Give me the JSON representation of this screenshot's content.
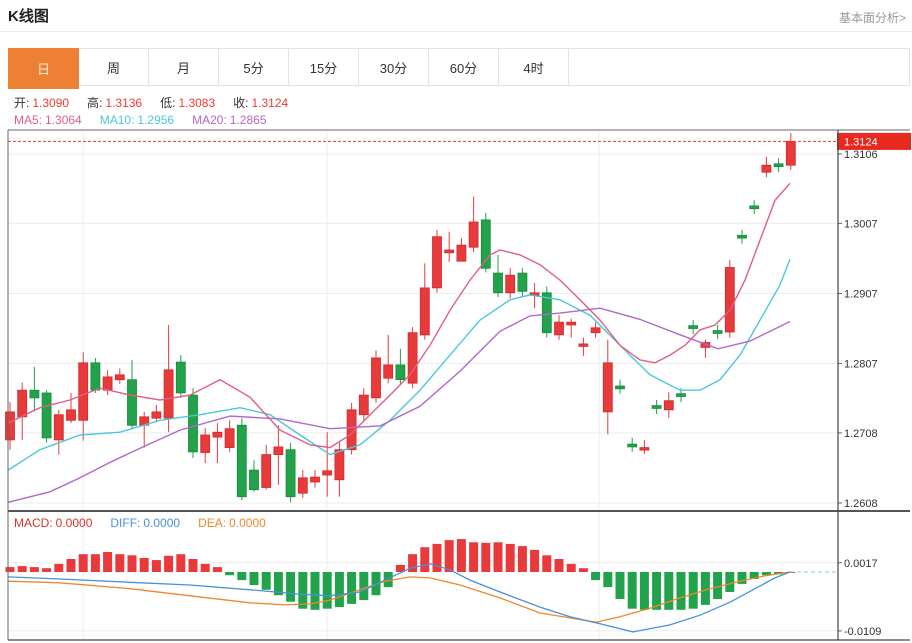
{
  "page": {
    "title": "K线图",
    "link": "基本面分析>"
  },
  "tabs": {
    "selected": "日",
    "items": [
      {
        "key": "day",
        "label": "日",
        "selected": true
      },
      {
        "key": "week",
        "label": "周",
        "selected": false
      },
      {
        "key": "month",
        "label": "月",
        "selected": false
      },
      {
        "key": "5min",
        "label": "5分",
        "selected": false
      },
      {
        "key": "15min",
        "label": "15分",
        "selected": false
      },
      {
        "key": "30min",
        "label": "30分",
        "selected": false
      },
      {
        "key": "60min",
        "label": "60分",
        "selected": false
      },
      {
        "key": "4hour",
        "label": "4时",
        "selected": false
      }
    ]
  },
  "legend": {
    "open_label": "开:",
    "open": "1.3090",
    "high_label": "高:",
    "high": "1.3136",
    "low_label": "低:",
    "low": "1.3083",
    "close_label": "收:",
    "close": "1.3124",
    "ma5_label": "MA5:",
    "ma5": "1.3064",
    "ma10_label": "MA10:",
    "ma10": "1.2956",
    "ma20_label": "MA20:",
    "ma20": "1.2865"
  },
  "macd_legend": {
    "macd_label": "MACD:",
    "macd": "0.0000",
    "diff_label": "DIFF:",
    "diff": "0.0000",
    "dea_label": "DEA:",
    "dea": "0.0000"
  },
  "colors": {
    "accent": "#ed8033",
    "up": "#e8393b",
    "up_border": "#ce2b2d",
    "down": "#21a24b",
    "down_border": "#158c3b",
    "ma5": "#e25d87",
    "ma10": "#4cc7da",
    "ma20": "#b168c8",
    "diff": "#4a90d9",
    "dea": "#ef872d",
    "value_red": "#f03b30",
    "badge": "#e8291f",
    "grid": "#ececec",
    "frame": "#666666",
    "axis_text": "#333333",
    "zero_dash": "#86cede",
    "price_line": "#f23527",
    "link": "#999999"
  },
  "chart_data": [
    {
      "type": "candlestick",
      "title": "K线图",
      "period": "日",
      "last_price": 1.3124,
      "last_price_label": "1.3124",
      "y_ticks": [
        1.3106,
        1.3007,
        1.2907,
        1.2807,
        1.2708,
        1.2608
      ],
      "y_tick_labels": [
        "1.3106",
        "1.3007",
        "1.2907",
        "1.2807",
        "1.2708",
        "1.2608"
      ],
      "legend_entries": [
        "MA5",
        "MA10",
        "MA20"
      ],
      "grid": true,
      "axis_side": "right",
      "candles_ohlc": [
        [
          1.2698,
          1.2752,
          1.2684,
          1.2738
        ],
        [
          1.2731,
          1.278,
          1.2698,
          1.2769
        ],
        [
          1.2769,
          1.2802,
          1.2741,
          1.2758
        ],
        [
          1.2765,
          1.2769,
          1.2694,
          1.2701
        ],
        [
          1.2698,
          1.2741,
          1.2677,
          1.2734
        ],
        [
          1.2726,
          1.2765,
          1.2722,
          1.2741
        ],
        [
          1.2726,
          1.2823,
          1.2697,
          1.2808
        ],
        [
          1.2808,
          1.2815,
          1.2765,
          1.2769
        ],
        [
          1.2769,
          1.2798,
          1.2762,
          1.2788
        ],
        [
          1.2784,
          1.28,
          1.2778,
          1.2791
        ],
        [
          1.2784,
          1.2812,
          1.2715,
          1.2719
        ],
        [
          1.2719,
          1.2738,
          1.2687,
          1.2731
        ],
        [
          1.2729,
          1.2748,
          1.2723,
          1.2738
        ],
        [
          1.2729,
          1.2862,
          1.2709,
          1.2798
        ],
        [
          1.2809,
          1.2819,
          1.2758,
          1.2765
        ],
        [
          1.2762,
          1.2772,
          1.2672,
          1.2681
        ],
        [
          1.268,
          1.2715,
          1.2665,
          1.2705
        ],
        [
          1.2702,
          1.2722,
          1.2665,
          1.2709
        ],
        [
          1.2687,
          1.2726,
          1.2681,
          1.2714
        ],
        [
          1.2719,
          1.2729,
          1.2612,
          1.2617
        ],
        [
          1.2655,
          1.2669,
          1.2624,
          1.2627
        ],
        [
          1.263,
          1.2691,
          1.2627,
          1.2677
        ],
        [
          1.2677,
          1.2719,
          1.2634,
          1.2688
        ],
        [
          1.2684,
          1.2694,
          1.2609,
          1.2617
        ],
        [
          1.2622,
          1.2655,
          1.2615,
          1.2644
        ],
        [
          1.2638,
          1.2655,
          1.263,
          1.2645
        ],
        [
          1.2648,
          1.2709,
          1.2617,
          1.2654
        ],
        [
          1.2641,
          1.2694,
          1.2617,
          1.2684
        ],
        [
          1.2684,
          1.2751,
          1.2677,
          1.2741
        ],
        [
          1.2734,
          1.2772,
          1.2726,
          1.2762
        ],
        [
          1.2758,
          1.2826,
          1.2751,
          1.2815
        ],
        [
          1.2786,
          1.2848,
          1.2779,
          1.2805
        ],
        [
          1.2805,
          1.2828,
          1.2776,
          1.2784
        ],
        [
          1.2779,
          1.2859,
          1.2772,
          1.2851
        ],
        [
          1.2848,
          1.295,
          1.2841,
          1.2915
        ],
        [
          1.2915,
          1.2998,
          1.2908,
          1.2988
        ],
        [
          1.2965,
          1.2995,
          1.2952,
          1.2969
        ],
        [
          1.2953,
          1.2986,
          1.2957,
          1.2976
        ],
        [
          1.2973,
          1.3045,
          1.2966,
          1.3009
        ],
        [
          1.3012,
          1.3022,
          1.2937,
          1.2943
        ],
        [
          1.2936,
          1.2962,
          1.2902,
          1.2908
        ],
        [
          1.2908,
          1.2943,
          1.29,
          1.2933
        ],
        [
          1.2936,
          1.2943,
          1.2902,
          1.291
        ],
        [
          1.2905,
          1.2922,
          1.2886,
          1.2908
        ],
        [
          1.2908,
          1.2917,
          1.2844,
          1.2851
        ],
        [
          1.2848,
          1.2876,
          1.2841,
          1.2866
        ],
        [
          1.2862,
          1.2871,
          1.2844,
          1.2866
        ],
        [
          1.2832,
          1.2844,
          1.2818,
          1.2835
        ],
        [
          1.2851,
          1.2866,
          1.2844,
          1.2858
        ],
        [
          1.2738,
          1.2841,
          1.2706,
          1.2808
        ],
        [
          1.2775,
          1.2784,
          1.2764,
          1.2771
        ],
        [
          1.2692,
          1.2701,
          1.2681,
          1.2688
        ],
        [
          1.2684,
          1.2698,
          1.2678,
          1.2687
        ],
        [
          1.2747,
          1.2755,
          1.2735,
          1.2743
        ],
        [
          1.2741,
          1.2766,
          1.2729,
          1.2754
        ],
        [
          1.2764,
          1.2772,
          1.2752,
          1.276
        ],
        [
          1.2861,
          1.2869,
          1.2849,
          1.2857
        ],
        [
          1.283,
          1.2841,
          1.2815,
          1.2837
        ],
        [
          1.2854,
          1.2862,
          1.2842,
          1.285
        ],
        [
          1.2852,
          1.2955,
          1.2844,
          1.2944
        ],
        [
          1.299,
          1.2998,
          1.2978,
          1.2986
        ],
        [
          1.3032,
          1.304,
          1.302,
          1.3028
        ],
        [
          1.308,
          1.3102,
          1.3073,
          1.309
        ],
        [
          1.3092,
          1.31,
          1.308,
          1.3088
        ],
        [
          1.309,
          1.3136,
          1.3083,
          1.3124
        ]
      ],
      "ma5_line": [
        [
          8,
          1.2722
        ],
        [
          40,
          1.2744
        ],
        [
          70,
          1.2755
        ],
        [
          100,
          1.2772
        ],
        [
          130,
          1.2762
        ],
        [
          160,
          1.2755
        ],
        [
          190,
          1.2762
        ],
        [
          220,
          1.2784
        ],
        [
          250,
          1.2759
        ],
        [
          280,
          1.2712
        ],
        [
          310,
          1.2691
        ],
        [
          330,
          1.2687
        ],
        [
          350,
          1.2705
        ],
        [
          370,
          1.2734
        ],
        [
          390,
          1.2762
        ],
        [
          410,
          1.2791
        ],
        [
          430,
          1.2833
        ],
        [
          450,
          1.2883
        ],
        [
          470,
          1.2926
        ],
        [
          490,
          1.2962
        ],
        [
          500,
          1.2969
        ],
        [
          520,
          1.2962
        ],
        [
          540,
          1.2948
        ],
        [
          560,
          1.2926
        ],
        [
          580,
          1.2898
        ],
        [
          600,
          1.2869
        ],
        [
          620,
          1.2833
        ],
        [
          640,
          1.2812
        ],
        [
          655,
          1.2808
        ],
        [
          670,
          1.2819
        ],
        [
          685,
          1.2833
        ],
        [
          700,
          1.2855
        ],
        [
          715,
          1.2862
        ],
        [
          730,
          1.2883
        ],
        [
          745,
          1.2926
        ],
        [
          760,
          1.2983
        ],
        [
          775,
          1.304
        ],
        [
          790,
          1.3064
        ]
      ],
      "ma10_line": [
        [
          8,
          1.2655
        ],
        [
          40,
          1.2684
        ],
        [
          80,
          1.2705
        ],
        [
          120,
          1.2709
        ],
        [
          160,
          1.2726
        ],
        [
          200,
          1.2734
        ],
        [
          240,
          1.2744
        ],
        [
          270,
          1.2734
        ],
        [
          300,
          1.2705
        ],
        [
          330,
          1.2677
        ],
        [
          360,
          1.2691
        ],
        [
          390,
          1.2726
        ],
        [
          420,
          1.2769
        ],
        [
          450,
          1.2819
        ],
        [
          480,
          1.2869
        ],
        [
          510,
          1.2898
        ],
        [
          530,
          1.2905
        ],
        [
          560,
          1.2898
        ],
        [
          590,
          1.2876
        ],
        [
          620,
          1.2833
        ],
        [
          650,
          1.2791
        ],
        [
          680,
          1.2769
        ],
        [
          700,
          1.2769
        ],
        [
          720,
          1.2784
        ],
        [
          740,
          1.2819
        ],
        [
          760,
          1.2869
        ],
        [
          780,
          1.2919
        ],
        [
          790,
          1.2956
        ]
      ],
      "ma20_line": [
        [
          8,
          1.2609
        ],
        [
          50,
          1.2624
        ],
        [
          80,
          1.2644
        ],
        [
          110,
          1.2666
        ],
        [
          140,
          1.2686
        ],
        [
          180,
          1.2712
        ],
        [
          230,
          1.2732
        ],
        [
          280,
          1.2728
        ],
        [
          330,
          1.2714
        ],
        [
          380,
          1.2718
        ],
        [
          420,
          1.2746
        ],
        [
          460,
          1.2796
        ],
        [
          500,
          1.2853
        ],
        [
          530,
          1.2875
        ],
        [
          560,
          1.2879
        ],
        [
          600,
          1.2886
        ],
        [
          640,
          1.287
        ],
        [
          680,
          1.2848
        ],
        [
          718,
          1.2828
        ],
        [
          750,
          1.2839
        ],
        [
          790,
          1.2867
        ]
      ]
    },
    {
      "type": "macd",
      "y_ticks": [
        0.0017,
        -0.0109
      ],
      "y_tick_labels": [
        "0.0017",
        "-0.0109"
      ],
      "histogram": [
        0.0009,
        0.0011,
        0.0009,
        0.0007,
        0.0015,
        0.0024,
        0.0033,
        0.0033,
        0.0037,
        0.0033,
        0.0031,
        0.0026,
        0.0022,
        0.003,
        0.0033,
        0.0024,
        0.0015,
        0.0009,
        -0.0006,
        -0.0015,
        -0.0024,
        -0.0033,
        -0.0043,
        -0.0055,
        -0.0068,
        -0.007,
        -0.0068,
        -0.0065,
        -0.0059,
        -0.0052,
        -0.0043,
        -0.0028,
        0.0013,
        0.0033,
        0.0046,
        0.0052,
        0.0059,
        0.0061,
        0.0055,
        0.0054,
        0.0055,
        0.0052,
        0.0048,
        0.0041,
        0.0031,
        0.0024,
        0.0015,
        0.0007,
        -0.0015,
        -0.0028,
        -0.005,
        -0.0068,
        -0.007,
        -0.007,
        -0.007,
        -0.007,
        -0.0068,
        -0.0061,
        -0.005,
        -0.0037,
        -0.0022,
        -0.0013,
        -0.0006,
        -0.0004,
        0.0
      ],
      "diff_line": [
        [
          8,
          -0.0009
        ],
        [
          60,
          -0.0013
        ],
        [
          130,
          -0.0019
        ],
        [
          190,
          -0.0024
        ],
        [
          250,
          -0.0033
        ],
        [
          300,
          -0.0041
        ],
        [
          330,
          -0.0044
        ],
        [
          360,
          -0.0037
        ],
        [
          385,
          -0.0015
        ],
        [
          410,
          0.0007
        ],
        [
          430,
          0.0015
        ],
        [
          450,
          0.0004
        ],
        [
          470,
          -0.0015
        ],
        [
          500,
          -0.0037
        ],
        [
          540,
          -0.0065
        ],
        [
          570,
          -0.0083
        ],
        [
          600,
          -0.0096
        ],
        [
          633,
          -0.0111
        ],
        [
          670,
          -0.0098
        ],
        [
          700,
          -0.008
        ],
        [
          730,
          -0.0056
        ],
        [
          755,
          -0.0031
        ],
        [
          775,
          -0.0011
        ],
        [
          790,
          0.0
        ]
      ],
      "dea_line": [
        [
          8,
          -0.0017
        ],
        [
          60,
          -0.002
        ],
        [
          130,
          -0.0031
        ],
        [
          190,
          -0.0044
        ],
        [
          250,
          -0.0057
        ],
        [
          285,
          -0.0061
        ],
        [
          310,
          -0.0059
        ],
        [
          330,
          -0.0052
        ],
        [
          360,
          -0.0033
        ],
        [
          385,
          -0.0017
        ],
        [
          410,
          -0.0009
        ],
        [
          430,
          -0.0011
        ],
        [
          460,
          -0.0024
        ],
        [
          500,
          -0.0048
        ],
        [
          540,
          -0.0076
        ],
        [
          570,
          -0.0085
        ],
        [
          596,
          -0.0093
        ],
        [
          620,
          -0.0083
        ],
        [
          650,
          -0.0067
        ],
        [
          680,
          -0.0048
        ],
        [
          710,
          -0.0031
        ],
        [
          740,
          -0.0017
        ],
        [
          765,
          -0.0007
        ],
        [
          790,
          0.0
        ]
      ]
    }
  ]
}
